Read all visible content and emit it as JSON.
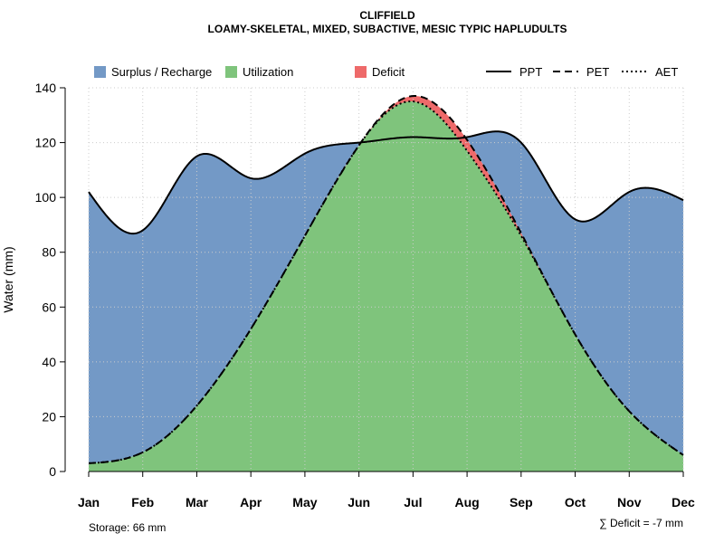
{
  "chart_data": {
    "type": "area",
    "title": "CLIFFIELD",
    "subtitle": "LOAMY-SKELETAL, MIXED, SUBACTIVE, MESIC TYPIC HAPLUDULTS",
    "xlabel": "",
    "ylabel": "Water (mm)",
    "ylim": [
      0,
      140
    ],
    "yticks": [
      0,
      20,
      40,
      60,
      80,
      100,
      120,
      140
    ],
    "grid": true,
    "categories": [
      "Jan",
      "Feb",
      "Mar",
      "Apr",
      "May",
      "Jun",
      "Jul",
      "Aug",
      "Sep",
      "Oct",
      "Nov",
      "Dec"
    ],
    "series": [
      {
        "name": "PPT",
        "values": [
          102,
          88,
          115,
          107,
          116,
          120,
          122,
          122,
          120,
          92,
          102,
          99
        ]
      },
      {
        "name": "PET",
        "values": [
          3,
          7,
          24,
          52,
          86,
          119,
          137,
          121,
          87,
          50,
          22,
          6
        ]
      },
      {
        "name": "AET",
        "values": [
          3,
          7,
          24,
          52,
          86,
          119,
          135,
          117,
          86,
          50,
          22,
          6
        ]
      }
    ],
    "legend": [
      {
        "label": "Surplus / Recharge",
        "kind": "fill",
        "color": "#7399C6"
      },
      {
        "label": "Utilization",
        "kind": "fill",
        "color": "#7FC47C"
      },
      {
        "label": "Deficit",
        "kind": "fill",
        "color": "#EE6A6A"
      },
      {
        "label": "PPT",
        "kind": "line",
        "dash": "solid"
      },
      {
        "label": "PET",
        "kind": "line",
        "dash": "dashed"
      },
      {
        "label": "AET",
        "kind": "line",
        "dash": "dotted"
      }
    ],
    "legend_position": "top",
    "annotations": {
      "storage": "Storage: 66 mm",
      "deficit": "∑ Deficit = -7 mm"
    }
  }
}
